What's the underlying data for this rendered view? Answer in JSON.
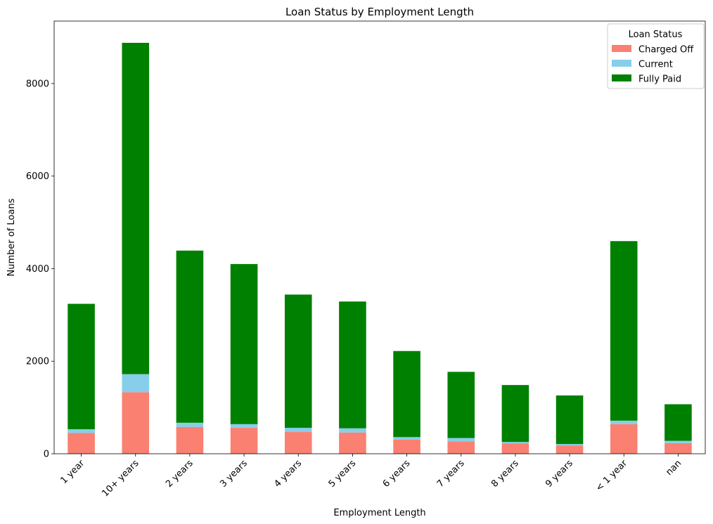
{
  "chart_data": {
    "type": "bar",
    "stacked": true,
    "title": "Loan Status by Employment Length",
    "xlabel": "Employment Length",
    "ylabel": "Number of Loans",
    "ylim": [
      0,
      9350
    ],
    "yticks": [
      0,
      2000,
      4000,
      6000,
      8000
    ],
    "categories": [
      "1 year",
      "10+ years",
      "2 years",
      "3 years",
      "4 years",
      "5 years",
      "6 years",
      "7 years",
      "8 years",
      "9 years",
      "< 1 year",
      "nan"
    ],
    "legend": {
      "title": "Loan Status",
      "position": "top-right"
    },
    "series": [
      {
        "name": "Charged Off",
        "color": "#FA8072",
        "values": [
          450,
          1330,
          580,
          560,
          470,
          460,
          305,
          270,
          220,
          175,
          640,
          230
        ]
      },
      {
        "name": "Current",
        "color": "#87CEEB",
        "values": [
          80,
          390,
          90,
          80,
          90,
          90,
          55,
          70,
          35,
          35,
          75,
          50
        ]
      },
      {
        "name": "Fully Paid",
        "color": "#008000",
        "values": [
          2710,
          7160,
          3720,
          3460,
          2880,
          2740,
          1860,
          1430,
          1230,
          1050,
          3880,
          790
        ]
      }
    ]
  }
}
